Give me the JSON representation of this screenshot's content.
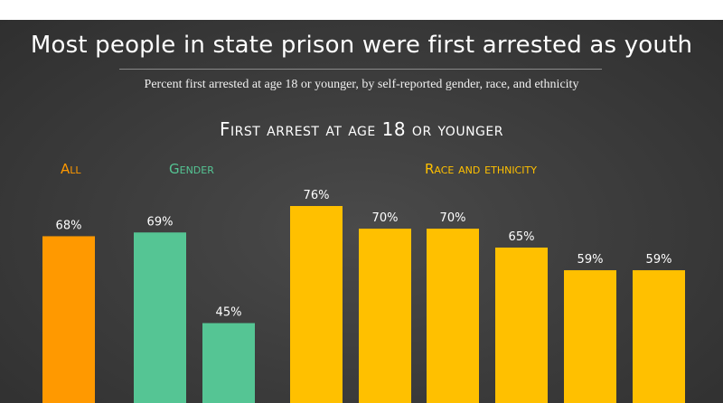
{
  "title": "Most people in state prison were first arrested as youth",
  "subtitle": "Percent first arrested at age 18 or younger, by self-reported gender, race, and ethnicity",
  "colors": {
    "all": "#ff9900",
    "gender": "#55c594",
    "race": "#ffc000",
    "background": "#3b3b3b"
  },
  "chart_data": {
    "type": "bar",
    "title": "First arrest at age 18 or younger",
    "groups": [
      {
        "label": "All",
        "color_key": "all",
        "bars": [
          {
            "value": 68,
            "label": "68%"
          }
        ]
      },
      {
        "label": "Gender",
        "color_key": "gender",
        "bars": [
          {
            "value": 69,
            "label": "69%"
          },
          {
            "value": 45,
            "label": "45%"
          }
        ]
      },
      {
        "label": "Race and ethnicity",
        "color_key": "race",
        "bars": [
          {
            "value": 76,
            "label": "76%"
          },
          {
            "value": 70,
            "label": "70%"
          },
          {
            "value": 70,
            "label": "70%"
          },
          {
            "value": 65,
            "label": "65%"
          },
          {
            "value": 59,
            "label": "59%"
          },
          {
            "value": 59,
            "label": "59%"
          }
        ]
      }
    ]
  }
}
